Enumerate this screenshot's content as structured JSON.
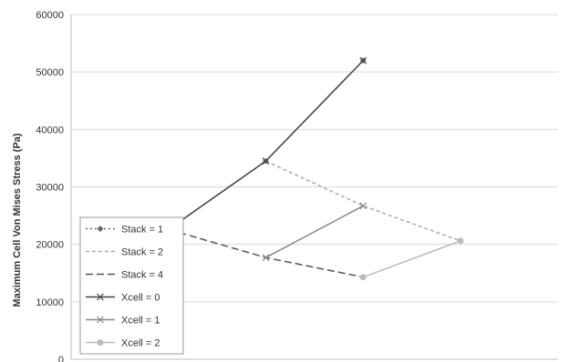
{
  "chart_data": {
    "type": "line",
    "title": "",
    "xlabel": "",
    "ylabel": "Maximum Cell Von Mises Stress (Pa)",
    "ylim": [
      0,
      60000
    ],
    "yticks": [
      0,
      10000,
      20000,
      30000,
      40000,
      50000,
      60000
    ],
    "ytick_labels": [
      "0",
      "10000",
      "20000",
      "30000",
      "40000",
      "50000",
      "60000"
    ],
    "x_positions": [
      1,
      2,
      3,
      4
    ],
    "xlim": [
      0,
      5
    ],
    "grid": "horizontal",
    "legend_position": "bottom-left",
    "series": [
      {
        "name": "Stack = 1",
        "x": [
          1,
          2,
          3
        ],
        "values": [
          22600,
          34500,
          52000
        ],
        "color": "#666666",
        "dash": "2,3",
        "marker": "diamond"
      },
      {
        "name": "Stack = 2",
        "x": [
          2,
          3,
          4
        ],
        "values": [
          34500,
          26700,
          20600
        ],
        "color": "#aaaaaa",
        "dash": "4,3",
        "marker": "none"
      },
      {
        "name": "Stack = 4",
        "x": [
          1,
          2,
          3
        ],
        "values": [
          22600,
          17700,
          14300
        ],
        "color": "#555555",
        "dash": "8,4",
        "marker": "none"
      },
      {
        "name": "Xcell = 0",
        "x": [
          1,
          2,
          3
        ],
        "values": [
          22600,
          34500,
          52000
        ],
        "color": "#444444",
        "dash": "",
        "marker": "x"
      },
      {
        "name": "Xcell = 1",
        "x": [
          2,
          3
        ],
        "values": [
          17700,
          26700
        ],
        "color": "#888888",
        "dash": "",
        "marker": "x"
      },
      {
        "name": "Xcell = 2",
        "x": [
          3,
          4
        ],
        "values": [
          14300,
          20600
        ],
        "color": "#bbbbbb",
        "dash": "",
        "marker": "circle"
      }
    ]
  }
}
